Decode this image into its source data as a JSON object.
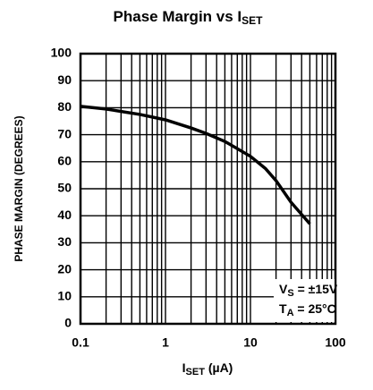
{
  "chart_data": {
    "type": "line",
    "title": {
      "text": "Phase Margin vs I",
      "subscript": "SET"
    },
    "xlabel": {
      "text": "I",
      "subscript": "SET",
      "unit": " (µA)"
    },
    "ylabel": "PHASE MARGIN (DEGREES)",
    "annotations": [
      {
        "text": "V",
        "subscript": "S",
        "rest": " = ±15V"
      },
      {
        "text": "T",
        "subscript": "A",
        "rest": " = 25°C"
      }
    ],
    "x": [
      0.1,
      0.2,
      0.5,
      1,
      2,
      3,
      5,
      10,
      15,
      20,
      30,
      50
    ],
    "values": [
      80.5,
      79.5,
      77.5,
      75.5,
      72.5,
      70.5,
      67.5,
      62,
      57.5,
      53,
      45,
      37
    ],
    "color": "#000000",
    "xscale": "log",
    "xlim": [
      0.1,
      100
    ],
    "xticks": [
      0.1,
      1,
      10,
      100
    ],
    "xminor_ticks": [
      0.2,
      0.3,
      0.4,
      0.5,
      0.6,
      0.7,
      0.8,
      0.9,
      2,
      3,
      4,
      5,
      6,
      7,
      8,
      9,
      20,
      30,
      40,
      50,
      60,
      70,
      80,
      90
    ],
    "ylim": [
      0,
      100
    ],
    "yticks": [
      0,
      10,
      20,
      30,
      40,
      50,
      60,
      70,
      80,
      90,
      100
    ],
    "grid": true
  }
}
